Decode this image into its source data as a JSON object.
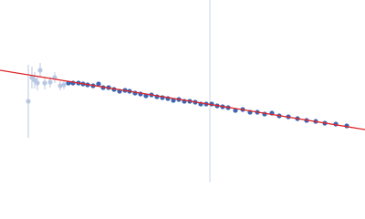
{
  "chart_data": {
    "type": "scatter",
    "xlim": [
      0,
      400
    ],
    "ylim": [
      0,
      200
    ],
    "series": [
      {
        "color": "#b9c8e2",
        "x": [
          31,
          35,
          38,
          41,
          44,
          49,
          55,
          60,
          66,
          70
        ],
        "values": [
          89,
          115,
          112,
          109,
          123,
          109,
          110,
          115,
          106,
          107
        ],
        "errors": [
          40,
          12,
          9,
          8,
          8,
          7,
          6,
          6,
          5,
          5
        ]
      },
      {
        "color": "#3c66b2",
        "x": [
          75,
          80,
          86,
          91,
          96,
          102,
          108,
          113,
          119,
          125,
          131,
          137,
          142,
          148,
          154,
          160,
          166,
          172,
          178,
          184,
          190,
          196,
          202,
          208,
          214,
          220,
          226,
          232,
          238,
          244,
          250,
          258,
          266,
          274,
          282,
          290,
          298,
          306,
          316,
          326,
          336,
          346,
          356,
          368,
          380
        ],
        "values": [
          109,
          109,
          109,
          108,
          107,
          106,
          108,
          104,
          104,
          102,
          100,
          101,
          100,
          98,
          97,
          95,
          96,
          94,
          93,
          92,
          90,
          91,
          89,
          89,
          88,
          86,
          86,
          86,
          84,
          83,
          82,
          79,
          80,
          77,
          77,
          75,
          76,
          73,
          72,
          70,
          68,
          67,
          65,
          64,
          62
        ]
      }
    ],
    "fit_line": {
      "color": "#e0262a",
      "x": [
        0,
        400
      ],
      "values": [
        123,
        58
      ]
    },
    "vline": {
      "color": "#c9d5ea",
      "x": 230
    }
  }
}
